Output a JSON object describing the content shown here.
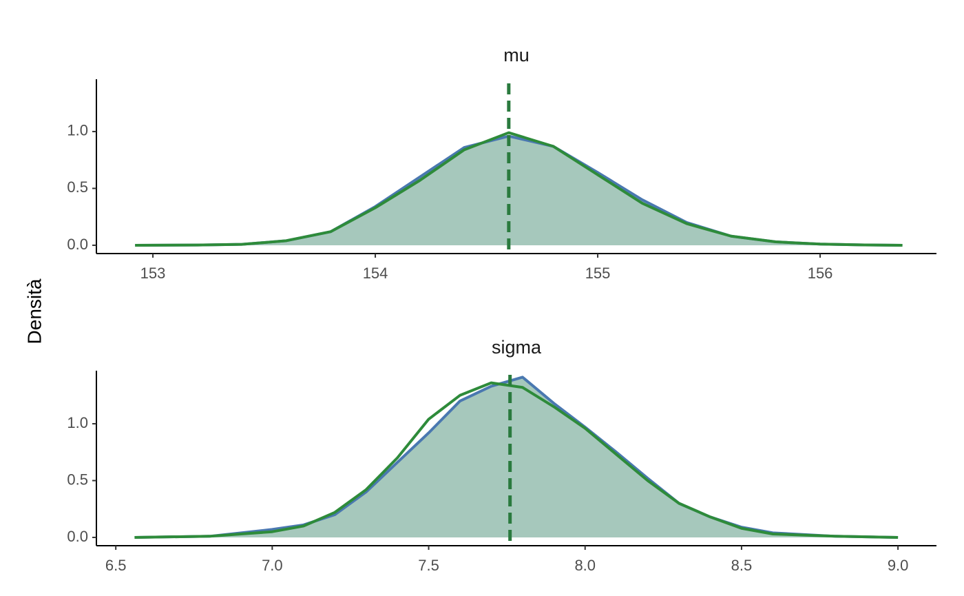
{
  "y_label": "Densità",
  "chart_data": [
    {
      "type": "density",
      "title": "mu",
      "x": [
        152.92,
        153.2,
        153.4,
        153.6,
        153.8,
        154.0,
        154.2,
        154.4,
        154.6,
        154.8,
        155.0,
        155.2,
        155.4,
        155.6,
        155.8,
        156.0,
        156.2,
        156.37
      ],
      "series": [
        {
          "color": "#4a78b0",
          "values": [
            0,
            0.002,
            0.008,
            0.04,
            0.12,
            0.34,
            0.6,
            0.86,
            0.96,
            0.87,
            0.64,
            0.4,
            0.2,
            0.08,
            0.03,
            0.01,
            0.003,
            0
          ]
        },
        {
          "color": "#2e8b3a",
          "values": [
            0,
            0.002,
            0.008,
            0.04,
            0.12,
            0.33,
            0.57,
            0.84,
            0.99,
            0.87,
            0.62,
            0.37,
            0.19,
            0.08,
            0.03,
            0.01,
            0.003,
            0
          ]
        }
      ],
      "fill_color": "#a6c8bc",
      "vline": 154.6,
      "vline_color": "#2a7a3e",
      "xlim": [
        152.746,
        156.523
      ],
      "ylim": [
        -0.073,
        1.46
      ],
      "xticks": [
        153,
        154,
        155,
        156
      ],
      "yticks": [
        {
          "value": 0,
          "label": "0.0"
        },
        0.5,
        {
          "value": 1,
          "label": "1.0"
        }
      ]
    },
    {
      "type": "density",
      "title": "sigma",
      "x": [
        6.56,
        6.8,
        7.0,
        7.1,
        7.2,
        7.3,
        7.4,
        7.5,
        7.6,
        7.7,
        7.8,
        7.9,
        8.0,
        8.1,
        8.2,
        8.3,
        8.4,
        8.5,
        8.6,
        8.8,
        9.0
      ],
      "series": [
        {
          "color": "#4a78b0",
          "values": [
            0,
            0.01,
            0.07,
            0.11,
            0.2,
            0.4,
            0.66,
            0.92,
            1.2,
            1.33,
            1.41,
            1.18,
            0.97,
            0.75,
            0.52,
            0.3,
            0.18,
            0.09,
            0.04,
            0.01,
            0
          ]
        },
        {
          "color": "#2e8b3a",
          "values": [
            0,
            0.01,
            0.05,
            0.1,
            0.22,
            0.42,
            0.7,
            1.04,
            1.25,
            1.36,
            1.32,
            1.15,
            0.96,
            0.73,
            0.5,
            0.3,
            0.18,
            0.08,
            0.03,
            0.01,
            0
          ]
        }
      ],
      "fill_color": "#a6c8bc",
      "vline": 7.76,
      "vline_color": "#2a7a3e",
      "xlim": [
        6.438,
        9.123
      ],
      "ylim": [
        -0.073,
        1.467
      ],
      "xticks": [
        6.5,
        {
          "value": 7,
          "label": "7.0"
        },
        7.5,
        {
          "value": 8,
          "label": "8.0"
        },
        8.5,
        {
          "value": 9,
          "label": "9.0"
        }
      ],
      "yticks": [
        {
          "value": 0,
          "label": "0.0"
        },
        0.5,
        {
          "value": 1,
          "label": "1.0"
        }
      ]
    }
  ]
}
